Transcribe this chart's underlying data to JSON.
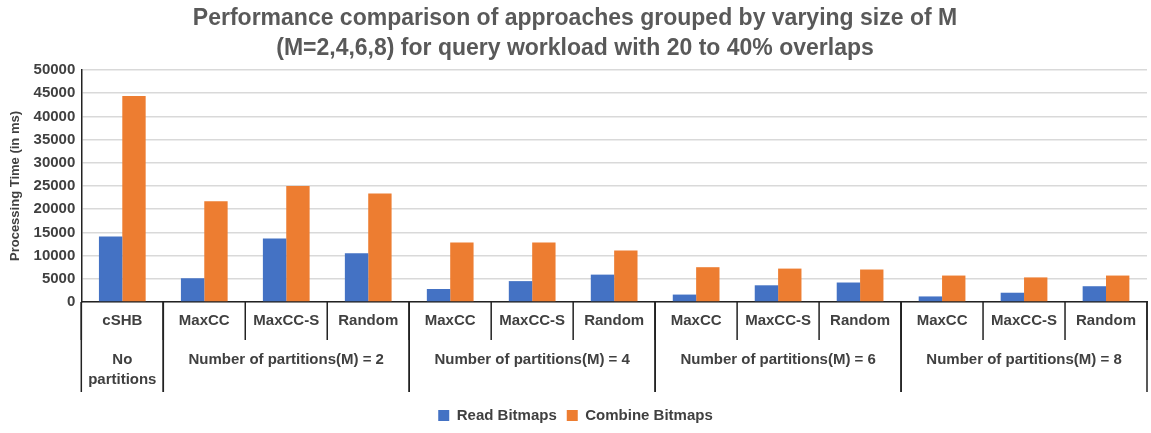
{
  "chart_data": {
    "type": "bar",
    "title": "Performance comparison of approaches grouped by varying size of M (M=2,4,6,8) for query workload with 20 to 40% overlaps",
    "ylabel": "Processing Time (in ms)",
    "categories": [
      "cSHB",
      "MaxCC",
      "MaxCC-S",
      "Random",
      "MaxCC",
      "MaxCC-S",
      "Random",
      "MaxCC",
      "MaxCC-S",
      "Random",
      "MaxCC",
      "MaxCC-S",
      "Random"
    ],
    "annotations": [
      "No partitions",
      "Number of partitions(M) = 2",
      "Number of partitions(M) = 4",
      "Number of partitions(M) = 6",
      "Number of partitions(M) = 8"
    ],
    "series": [
      {
        "name": "Read Bitmaps",
        "color": "#4472c4",
        "values": [
          14100,
          5100,
          13700,
          10500,
          2800,
          4500,
          5900,
          1600,
          3600,
          4200,
          1200,
          2000,
          3400
        ]
      },
      {
        "name": "Combine Bitmaps",
        "color": "#ed7d31",
        "values": [
          44400,
          21700,
          25000,
          23400,
          12800,
          12800,
          11100,
          7500,
          7200,
          7000,
          5700,
          5300,
          5700
        ]
      }
    ],
    "ylim": [
      0,
      50000
    ],
    "yticks": [
      0,
      5000,
      10000,
      15000,
      20000,
      25000,
      30000,
      35000,
      40000,
      45000,
      50000
    ],
    "grid": "y",
    "legend": "bottom"
  }
}
